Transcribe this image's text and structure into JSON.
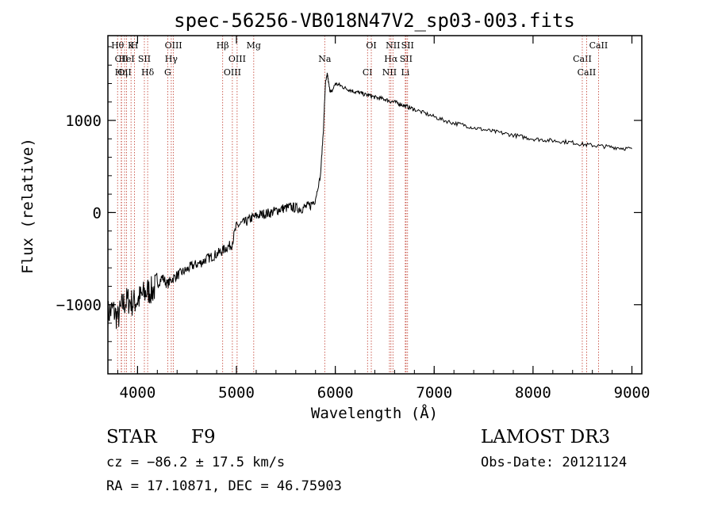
{
  "chart_data": {
    "type": "line",
    "title": "spec-56256-VB018N47V2_sp03-003.fits",
    "xlabel": "Wavelength (Å)",
    "ylabel": "Flux (relative)",
    "xlim": [
      3700,
      9100
    ],
    "ylim": [
      -1750,
      1920
    ],
    "xticks": [
      4000,
      5000,
      6000,
      7000,
      8000,
      9000
    ],
    "yticks": [
      -1000,
      0,
      1000
    ],
    "xtick_labels": [
      "4000",
      "5000",
      "6000",
      "7000",
      "8000",
      "9000"
    ],
    "ytick_labels": [
      "−1000",
      "0",
      "1000"
    ],
    "series": [
      {
        "name": "spectrum",
        "x": [
          3700,
          3750,
          3800,
          3850,
          3900,
          3950,
          4000,
          4050,
          4100,
          4150,
          4200,
          4250,
          4300,
          4350,
          4400,
          4450,
          4500,
          4550,
          4600,
          4650,
          4700,
          4750,
          4800,
          4850,
          4900,
          4950,
          5000,
          5050,
          5100,
          5150,
          5200,
          5250,
          5300,
          5350,
          5400,
          5450,
          5500,
          5550,
          5600,
          5650,
          5700,
          5750,
          5800,
          5850,
          5880,
          5900,
          5920,
          5940,
          5960,
          6000,
          6050,
          6100,
          6150,
          6200,
          6250,
          6300,
          6350,
          6400,
          6450,
          6500,
          6550,
          6600,
          6650,
          6700,
          6750,
          6800,
          6900,
          7000,
          7100,
          7200,
          7300,
          7400,
          7500,
          7600,
          7700,
          7800,
          7900,
          8000,
          8100,
          8200,
          8300,
          8400,
          8500,
          8600,
          8700,
          8800,
          8900,
          9000
        ],
        "values": [
          -1100,
          -1050,
          -1150,
          -1000,
          -950,
          -980,
          -950,
          -900,
          -850,
          -850,
          -780,
          -700,
          -780,
          -720,
          -680,
          -650,
          -620,
          -580,
          -560,
          -540,
          -500,
          -480,
          -450,
          -420,
          -380,
          -350,
          -150,
          -120,
          -100,
          -60,
          -40,
          -20,
          -10,
          0,
          20,
          40,
          50,
          60,
          50,
          40,
          60,
          80,
          150,
          400,
          900,
          1400,
          1500,
          1350,
          1300,
          1400,
          1380,
          1350,
          1330,
          1310,
          1300,
          1280,
          1270,
          1250,
          1240,
          1230,
          1210,
          1200,
          1180,
          1160,
          1140,
          1120,
          1080,
          1040,
          1000,
          970,
          950,
          920,
          900,
          880,
          860,
          840,
          820,
          800,
          790,
          780,
          770,
          760,
          740,
          730,
          720,
          710,
          700,
          690
        ]
      }
    ],
    "lines": [
      {
        "label": "Hθ",
        "x": 3798
      },
      {
        "label": "CII",
        "x": 3838
      },
      {
        "label": "OII",
        "x": 3869
      },
      {
        "label": "K",
        "x": 3934
      },
      {
        "label": "HeI",
        "x": 3889
      },
      {
        "label": "Hη",
        "x": 3835
      },
      {
        "label": "H",
        "x": 3969
      },
      {
        "label": "SII",
        "x": 4069
      },
      {
        "label": "Hδ",
        "x": 4102
      },
      {
        "label": "OIII",
        "x": 4363
      },
      {
        "label": "Hγ",
        "x": 4341
      },
      {
        "label": "G",
        "x": 4305
      },
      {
        "label": "Hβ",
        "x": 4861
      },
      {
        "label": "OIII",
        "x": 5007
      },
      {
        "label": "OIII",
        "x": 4959
      },
      {
        "label": "Mg",
        "x": 5175
      },
      {
        "label": "Na",
        "x": 5893
      },
      {
        "label": "CI",
        "x": 6326
      },
      {
        "label": "OI",
        "x": 6364
      },
      {
        "label": "Hα",
        "x": 6563
      },
      {
        "label": "NII",
        "x": 6548
      },
      {
        "label": "NII",
        "x": 6583
      },
      {
        "label": "SII",
        "x": 6716
      },
      {
        "label": "Li",
        "x": 6708
      },
      {
        "label": "SII",
        "x": 6731
      },
      {
        "label": "CaII",
        "x": 8498
      },
      {
        "label": "CaII",
        "x": 8542
      },
      {
        "label": "CaII",
        "x": 8662
      }
    ]
  },
  "footer": {
    "object_class": "STAR",
    "subclass": "F9",
    "survey": "LAMOST DR3",
    "cz": "cz = −86.2 ± 17.5 km/s",
    "obs_date": "Obs-Date: 20121124",
    "coords": "RA =  17.10871, DEC =  46.75903"
  }
}
